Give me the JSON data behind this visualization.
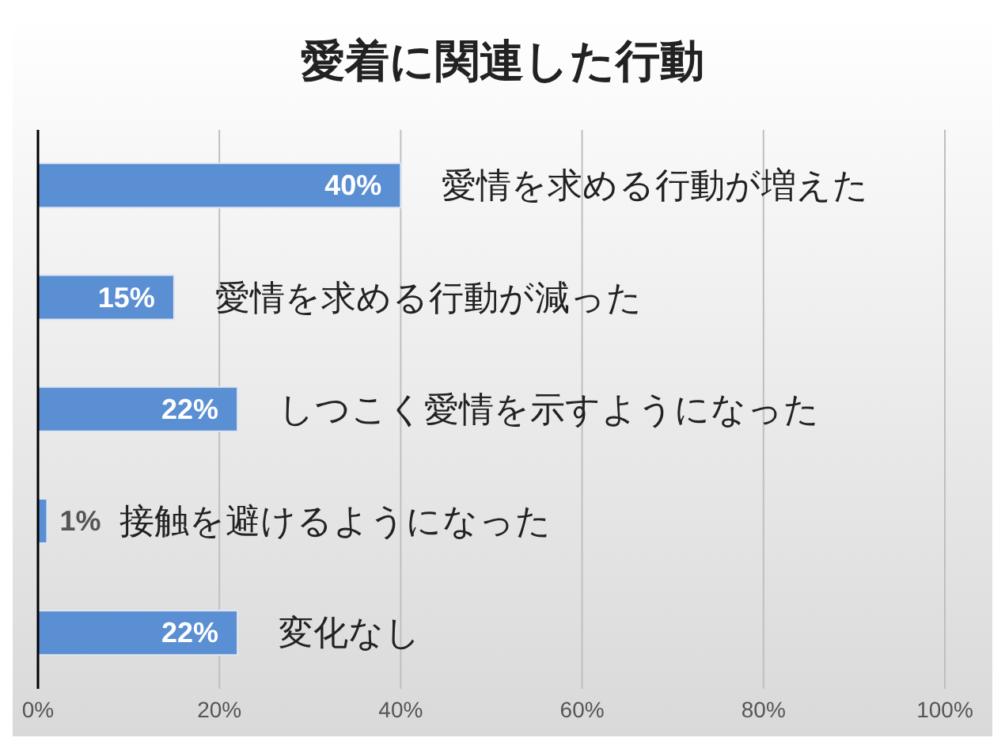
{
  "chart_data": {
    "type": "bar",
    "orientation": "horizontal",
    "title": "愛着に関連した行動",
    "categories": [
      "愛情を求める行動が増えた",
      "愛情を求める行動が減った",
      "しつこく愛情を示すようになった",
      "接触を避けるようになった",
      "変化なし"
    ],
    "values": [
      40,
      15,
      22,
      1,
      22
    ],
    "value_labels": [
      "40%",
      "15%",
      "22%",
      "1%",
      "22%"
    ],
    "color": "#5b8fd3",
    "xlim": [
      0,
      100
    ],
    "xticks": [
      {
        "value": 0,
        "label": "0%"
      },
      {
        "value": 20,
        "label": "20%"
      },
      {
        "value": 40,
        "label": "40%"
      },
      {
        "value": 60,
        "label": "60%"
      },
      {
        "value": 80,
        "label": "80%"
      },
      {
        "value": 100,
        "label": "100%"
      }
    ],
    "grid": "x",
    "legend": false
  }
}
